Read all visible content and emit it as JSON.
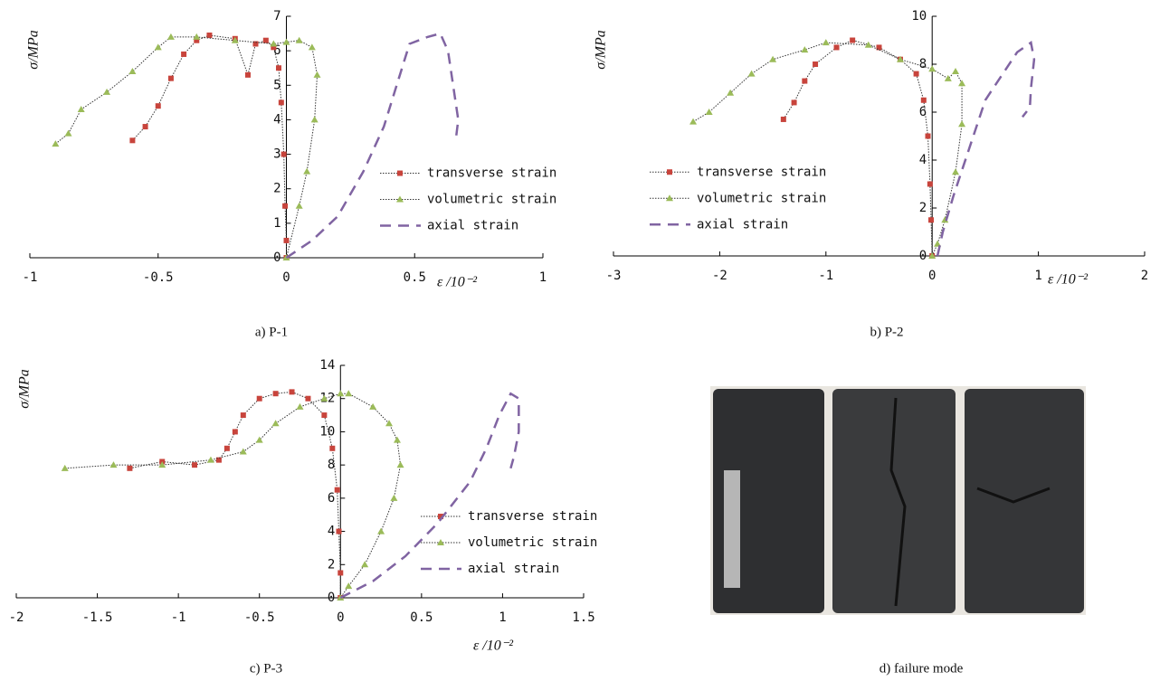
{
  "chart_data": [
    {
      "type": "line",
      "caption": "a) P-1",
      "x_label": "ε /10⁻²",
      "y_label": "σ/MPa",
      "legend": "right",
      "xlim": [
        -1,
        1
      ],
      "xticks": [
        -1,
        -0.5,
        0,
        0.5,
        1
      ],
      "ylim": [
        0,
        7
      ],
      "yticks": [
        0,
        1,
        2,
        3,
        4,
        5,
        6,
        7
      ],
      "series": [
        {
          "name": "transverse strain",
          "color": "#c8443c",
          "marker": "square",
          "line_style": "dotted",
          "x": [
            -0.6,
            -0.55,
            -0.5,
            -0.45,
            -0.4,
            -0.35,
            -0.3,
            -0.2,
            -0.15,
            -0.12,
            -0.08,
            -0.05,
            -0.03,
            -0.02,
            -0.01,
            -0.005,
            0,
            0
          ],
          "values": [
            3.4,
            3.8,
            4.4,
            5.2,
            5.9,
            6.3,
            6.45,
            6.35,
            5.3,
            6.2,
            6.3,
            6.1,
            5.5,
            4.5,
            3,
            1.5,
            0.5,
            0
          ]
        },
        {
          "name": "volumetric strain",
          "color": "#9bbb59",
          "marker": "triangle",
          "line_style": "dotted",
          "x": [
            -0.9,
            -0.85,
            -0.8,
            -0.7,
            -0.6,
            -0.5,
            -0.45,
            -0.35,
            -0.2,
            -0.05,
            0,
            0.05,
            0.1,
            0.12,
            0.11,
            0.08,
            0.05,
            0
          ],
          "values": [
            3.3,
            3.6,
            4.3,
            4.8,
            5.4,
            6.1,
            6.4,
            6.4,
            6.3,
            6.2,
            6.25,
            6.3,
            6.1,
            5.3,
            4,
            2.5,
            1.5,
            0
          ]
        },
        {
          "name": "axial strain",
          "color": "#8064a2",
          "marker": "none",
          "line_style": "dashed",
          "x": [
            0,
            0.1,
            0.2,
            0.3,
            0.38,
            0.43,
            0.48,
            0.55,
            0.6,
            0.63,
            0.65,
            0.67,
            0.66
          ],
          "values": [
            0,
            0.5,
            1.2,
            2.5,
            3.8,
            5,
            6.2,
            6.4,
            6.5,
            6,
            5,
            4,
            3.4
          ]
        }
      ]
    },
    {
      "type": "line",
      "caption": "b) P-2",
      "x_label": "ε /10⁻²",
      "y_label": "σ/MPa",
      "legend": "left",
      "xlim": [
        -3,
        2
      ],
      "xticks": [
        -3,
        -2,
        -1,
        0,
        1,
        2
      ],
      "ylim": [
        0,
        10
      ],
      "yticks": [
        0,
        2,
        4,
        6,
        8,
        10
      ],
      "series": [
        {
          "name": "transverse strain",
          "color": "#c8443c",
          "marker": "square",
          "line_style": "dotted",
          "x": [
            -1.4,
            -1.3,
            -1.2,
            -1.1,
            -0.9,
            -0.75,
            -0.5,
            -0.3,
            -0.15,
            -0.08,
            -0.04,
            -0.02,
            -0.01,
            0
          ],
          "values": [
            5.7,
            6.4,
            7.3,
            8,
            8.7,
            9,
            8.7,
            8.2,
            7.6,
            6.5,
            5,
            3,
            1.5,
            0
          ]
        },
        {
          "name": "volumetric strain",
          "color": "#9bbb59",
          "marker": "triangle",
          "line_style": "dotted",
          "x": [
            -2.25,
            -2.1,
            -1.9,
            -1.7,
            -1.5,
            -1.2,
            -1,
            -0.6,
            -0.3,
            0,
            0.15,
            0.22,
            0.28,
            0.28,
            0.22,
            0.12,
            0.05,
            0
          ],
          "values": [
            5.6,
            6,
            6.8,
            7.6,
            8.2,
            8.6,
            8.9,
            8.8,
            8.2,
            7.8,
            7.4,
            7.7,
            7.2,
            5.5,
            3.5,
            1.5,
            0.5,
            0
          ]
        },
        {
          "name": "axial strain",
          "color": "#8064a2",
          "marker": "none",
          "line_style": "dashed",
          "x": [
            0.05,
            0.1,
            0.2,
            0.35,
            0.5,
            0.65,
            0.8,
            0.93,
            0.96,
            0.93,
            0.92,
            0.85
          ],
          "values": [
            0,
            1,
            2.5,
            4.5,
            6.5,
            7.5,
            8.5,
            8.9,
            8.2,
            7,
            6.2,
            5.8
          ]
        }
      ]
    },
    {
      "type": "line",
      "caption": "c) P-3",
      "x_label": "ε /10⁻²",
      "y_label": "σ/MPa",
      "legend": "right",
      "xlim": [
        -2,
        1.5
      ],
      "xticks": [
        -2,
        -1.5,
        -1,
        -0.5,
        0,
        0.5,
        1,
        1.5
      ],
      "ylim": [
        0,
        14
      ],
      "yticks": [
        0,
        2,
        4,
        6,
        8,
        10,
        12,
        14
      ],
      "series": [
        {
          "name": "transverse strain",
          "color": "#c8443c",
          "marker": "square",
          "line_style": "dotted",
          "x": [
            -1.3,
            -1.1,
            -0.9,
            -0.75,
            -0.7,
            -0.65,
            -0.6,
            -0.5,
            -0.4,
            -0.3,
            -0.2,
            -0.1,
            -0.05,
            -0.02,
            -0.01,
            0,
            0
          ],
          "values": [
            7.8,
            8.2,
            8,
            8.3,
            9,
            10,
            11,
            12,
            12.3,
            12.4,
            12,
            11,
            9,
            6.5,
            4,
            1.5,
            0
          ]
        },
        {
          "name": "volumetric strain",
          "color": "#9bbb59",
          "marker": "triangle",
          "line_style": "dotted",
          "x": [
            -1.7,
            -1.4,
            -1.1,
            -0.8,
            -0.6,
            -0.5,
            -0.4,
            -0.25,
            -0.1,
            0,
            0.05,
            0.2,
            0.3,
            0.35,
            0.37,
            0.33,
            0.25,
            0.15,
            0.05,
            0
          ],
          "values": [
            7.8,
            8,
            8,
            8.3,
            8.8,
            9.5,
            10.5,
            11.5,
            12,
            12.3,
            12.3,
            11.5,
            10.5,
            9.5,
            8,
            6,
            4,
            2,
            0.7,
            0
          ]
        },
        {
          "name": "axial strain",
          "color": "#8064a2",
          "marker": "none",
          "line_style": "dashed",
          "x": [
            0,
            0.2,
            0.4,
            0.6,
            0.8,
            0.9,
            0.98,
            1.05,
            1.1,
            1.1,
            1.07,
            1.05
          ],
          "values": [
            0,
            1,
            2.5,
            4.5,
            7,
            9,
            11,
            12.3,
            12,
            10,
            8.5,
            7.8
          ]
        }
      ]
    }
  ],
  "photo": {
    "caption": "d) failure mode"
  }
}
